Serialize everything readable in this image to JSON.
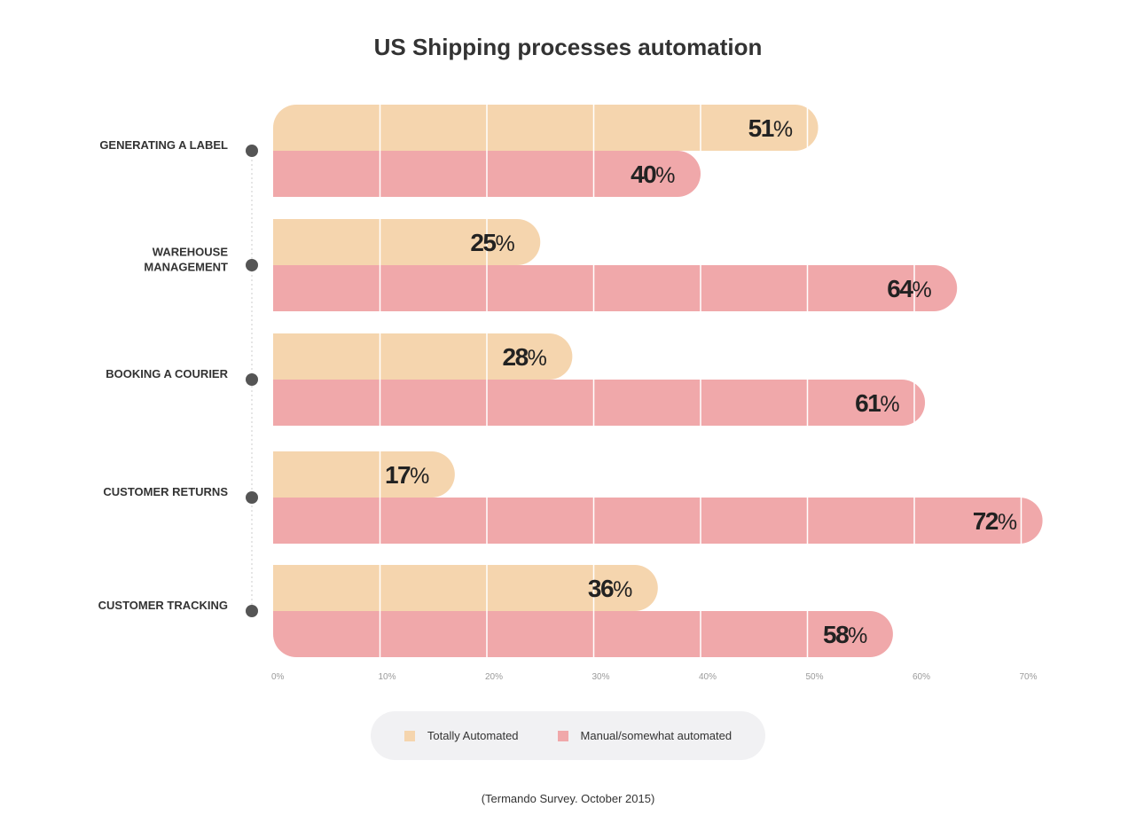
{
  "chart_data": {
    "type": "bar",
    "orientation": "horizontal",
    "title": "US Shipping processes automation",
    "categories": [
      "GENERATING A LABEL",
      "WAREHOUSE MANAGEMENT",
      "BOOKING A COURIER",
      "CUSTOMER RETURNS",
      "CUSTOMER TRACKING"
    ],
    "series": [
      {
        "name": "Totally Automated",
        "color": "#f5d5ae",
        "values": [
          51,
          25,
          28,
          17,
          36
        ]
      },
      {
        "name": "Manual/somewhat automated",
        "color": "#f0a8aa",
        "values": [
          40,
          64,
          61,
          72,
          58
        ]
      }
    ],
    "value_suffix": "%",
    "xlim": [
      0,
      75
    ],
    "xticks": [
      0,
      10,
      20,
      30,
      40,
      50,
      60,
      70
    ],
    "xtick_labels": [
      "0%",
      "10%",
      "20%",
      "30%",
      "40%",
      "50%",
      "60%",
      "70%"
    ],
    "xlabel": "",
    "ylabel": "",
    "grid": true,
    "legend_position": "bottom-center"
  },
  "category_label_lines": [
    [
      "GENERATING A LABEL"
    ],
    [
      "WAREHOUSE",
      "MANAGEMENT"
    ],
    [
      "BOOKING A COURIER"
    ],
    [
      "CUSTOMER RETURNS"
    ],
    [
      "CUSTOMER TRACKING"
    ]
  ],
  "legend": {
    "items": [
      {
        "label": "Totally Automated",
        "color": "#f5d5ae"
      },
      {
        "label": "Manual/somewhat automated",
        "color": "#f0a8aa"
      }
    ],
    "background": "#f1f1f3"
  },
  "source_note": "(Termando Survey. October 2015)",
  "colors": {
    "dot": "#555555",
    "gridline": "#ffffff",
    "text": "#333333",
    "tick_text": "#9a9a9a"
  }
}
